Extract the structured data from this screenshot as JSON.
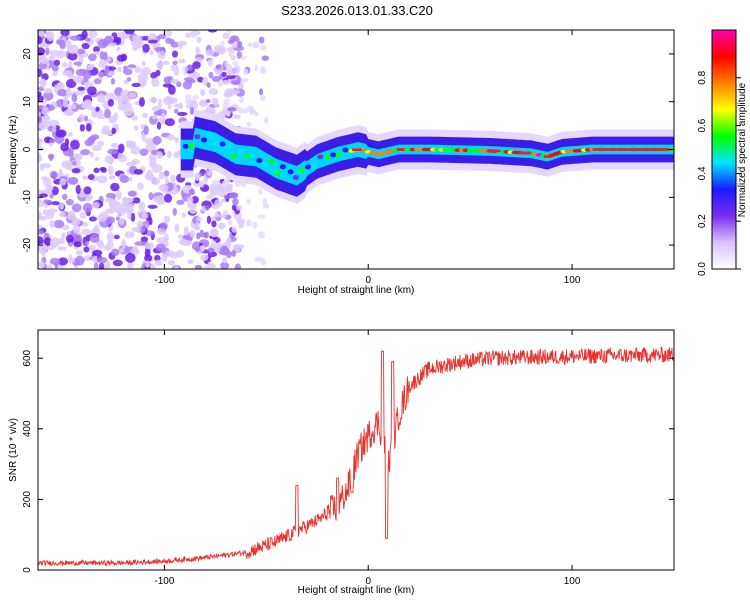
{
  "figure_title": "S233.2026.013.01.33.C20",
  "colors": {
    "snr_line": "#e8322c",
    "axis": "#000000",
    "background": "#ffffff"
  },
  "chart_data": [
    {
      "type": "heatmap",
      "name": "spectrogram",
      "title": "S233.2026.013.01.33.C20",
      "xlabel": "Height of straight line (km)",
      "ylabel": "Frequency (Hz)",
      "xlim": [
        -162,
        150
      ],
      "ylim": [
        -25,
        25
      ],
      "x_ticks": [
        -100,
        0,
        100
      ],
      "x_tick_labels": [
        "-100",
        "0",
        "100"
      ],
      "y_ticks": [
        -20,
        -10,
        0,
        10,
        20
      ],
      "y_tick_labels": [
        "-20",
        "-10",
        "0",
        "10",
        "20"
      ],
      "description_ridge": [
        {
          "x": -85,
          "y": 2.5
        },
        {
          "x": -75,
          "y": 1.5
        },
        {
          "x": -65,
          "y": -1
        },
        {
          "x": -55,
          "y": -1.5
        },
        {
          "x": -45,
          "y": -4
        },
        {
          "x": -35,
          "y": -5.5
        },
        {
          "x": -25,
          "y": -2.5
        },
        {
          "x": -15,
          "y": -1
        },
        {
          "x": -5,
          "y": 0
        },
        {
          "x": 5,
          "y": -1
        },
        {
          "x": 15,
          "y": 0
        },
        {
          "x": 30,
          "y": 0
        },
        {
          "x": 60,
          "y": -0.3
        },
        {
          "x": 80,
          "y": -0.8
        },
        {
          "x": 88,
          "y": -1.5
        },
        {
          "x": 95,
          "y": -0.5
        },
        {
          "x": 110,
          "y": 0
        },
        {
          "x": 150,
          "y": 0
        }
      ],
      "colorbar": {
        "label": "Normalized spectral amplitude",
        "range": [
          0,
          1
        ],
        "ticks": [
          0.0,
          0.2,
          0.4,
          0.6,
          0.8
        ],
        "tick_labels": [
          "0.0",
          "0.2",
          "0.4",
          "0.6",
          "0.8"
        ],
        "stops": [
          "#ffffff",
          "#d9c2ff",
          "#7a2cf0",
          "#1a1aff",
          "#00e5ff",
          "#00ff00",
          "#ffff00",
          "#ff8000",
          "#ff0000",
          "#ff00b0"
        ]
      }
    },
    {
      "type": "line",
      "name": "snr-profile",
      "xlabel": "Height of straight line (km)",
      "ylabel": "SNR (10 * v/v)",
      "xlim": [
        -162,
        150
      ],
      "ylim": [
        0,
        680
      ],
      "x_ticks": [
        -100,
        0,
        100
      ],
      "x_tick_labels": [
        "-100",
        "0",
        "100"
      ],
      "y_ticks": [
        0,
        200,
        400,
        600
      ],
      "y_tick_labels": [
        "0",
        "200",
        "400",
        "600"
      ],
      "series": [
        {
          "name": "SNR",
          "color": "#e8322c",
          "noise_amplitude_note": "high-frequency jitter around trend",
          "trend": [
            {
              "x": -162,
              "y": 20
            },
            {
              "x": -120,
              "y": 20
            },
            {
              "x": -100,
              "y": 25
            },
            {
              "x": -80,
              "y": 35
            },
            {
              "x": -60,
              "y": 50
            },
            {
              "x": -45,
              "y": 80
            },
            {
              "x": -35,
              "y": 110
            },
            {
              "x": -25,
              "y": 140
            },
            {
              "x": -15,
              "y": 180
            },
            {
              "x": -10,
              "y": 230
            },
            {
              "x": -5,
              "y": 330
            },
            {
              "x": 0,
              "y": 380
            },
            {
              "x": 5,
              "y": 420
            },
            {
              "x": 10,
              "y": 300
            },
            {
              "x": 15,
              "y": 440
            },
            {
              "x": 20,
              "y": 520
            },
            {
              "x": 30,
              "y": 570
            },
            {
              "x": 45,
              "y": 590
            },
            {
              "x": 60,
              "y": 600
            },
            {
              "x": 100,
              "y": 605
            },
            {
              "x": 150,
              "y": 610
            }
          ],
          "spikes": [
            {
              "x": 7,
              "y": 620
            },
            {
              "x": 9,
              "y": 90
            },
            {
              "x": 12,
              "y": 590
            },
            {
              "x": -35,
              "y": 240
            },
            {
              "x": -15,
              "y": 260
            },
            {
              "x": -8,
              "y": 220
            }
          ]
        }
      ]
    }
  ]
}
